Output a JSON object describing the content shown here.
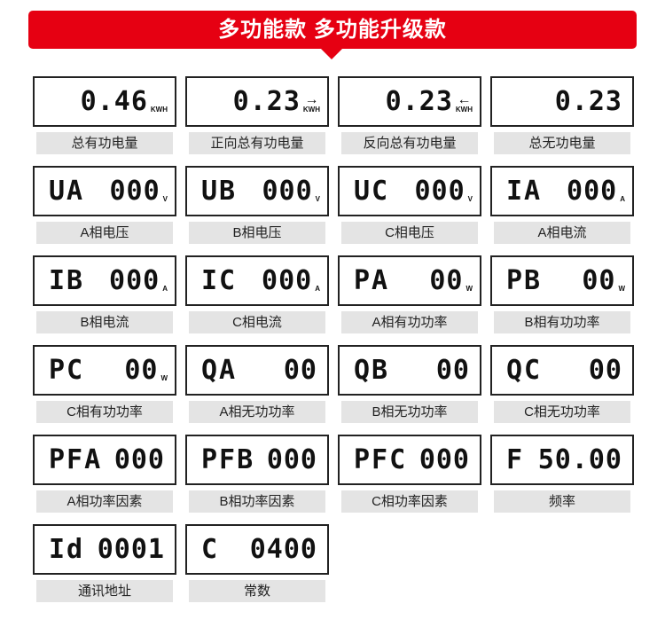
{
  "banner": {
    "title": "多功能款 多功能升级款"
  },
  "items": [
    {
      "left": "",
      "value": "0.46",
      "unit": "KWH",
      "arrow": "",
      "label": "总有功电量"
    },
    {
      "left": "",
      "value": "0.23",
      "unit": "KWH",
      "arrow": "→",
      "label": "正向总有功电量"
    },
    {
      "left": "",
      "value": "0.23",
      "unit": "KWH",
      "arrow": "←",
      "label": "反向总有功电量"
    },
    {
      "left": "",
      "value": "0.23",
      "unit": "",
      "arrow": "",
      "label": "总无功电量"
    },
    {
      "left": "UA",
      "value": "000",
      "unit": "V",
      "arrow": "",
      "label": "A相电压"
    },
    {
      "left": "UB",
      "value": "000",
      "unit": "V",
      "arrow": "",
      "label": "B相电压"
    },
    {
      "left": "UC",
      "value": "000",
      "unit": "V",
      "arrow": "",
      "label": "C相电压"
    },
    {
      "left": "IA",
      "value": "000",
      "unit": "A",
      "arrow": "",
      "label": "A相电流"
    },
    {
      "left": "IB",
      "value": "000",
      "unit": "A",
      "arrow": "",
      "label": "B相电流"
    },
    {
      "left": "IC",
      "value": "000",
      "unit": "A",
      "arrow": "",
      "label": "C相电流"
    },
    {
      "left": "PA",
      "value": "00",
      "unit": "W",
      "arrow": "",
      "label": "A相有功功率"
    },
    {
      "left": "PB",
      "value": "00",
      "unit": "W",
      "arrow": "",
      "label": "B相有功功率"
    },
    {
      "left": "PC",
      "value": "00",
      "unit": "W",
      "arrow": "",
      "label": "C相有功功率"
    },
    {
      "left": "QA",
      "value": "00",
      "unit": "",
      "arrow": "",
      "label": "A相无功功率"
    },
    {
      "left": "QB",
      "value": "00",
      "unit": "",
      "arrow": "",
      "label": "B相无功功率"
    },
    {
      "left": "QC",
      "value": "00",
      "unit": "",
      "arrow": "",
      "label": "C相无功功率"
    },
    {
      "left": "PFA",
      "value": "000",
      "unit": "",
      "arrow": "",
      "label": "A相功率因素"
    },
    {
      "left": "PFB",
      "value": "000",
      "unit": "",
      "arrow": "",
      "label": "B相功率因素"
    },
    {
      "left": "PFC",
      "value": "000",
      "unit": "",
      "arrow": "",
      "label": "C相功率因素"
    },
    {
      "left": "F",
      "value": "50.00",
      "unit": "",
      "arrow": "",
      "label": "频率"
    },
    {
      "left": "Id",
      "value": "0001",
      "unit": "",
      "arrow": "",
      "label": "通讯地址"
    },
    {
      "left": "C",
      "value": "0400",
      "unit": "",
      "arrow": "",
      "label": "常数"
    }
  ]
}
